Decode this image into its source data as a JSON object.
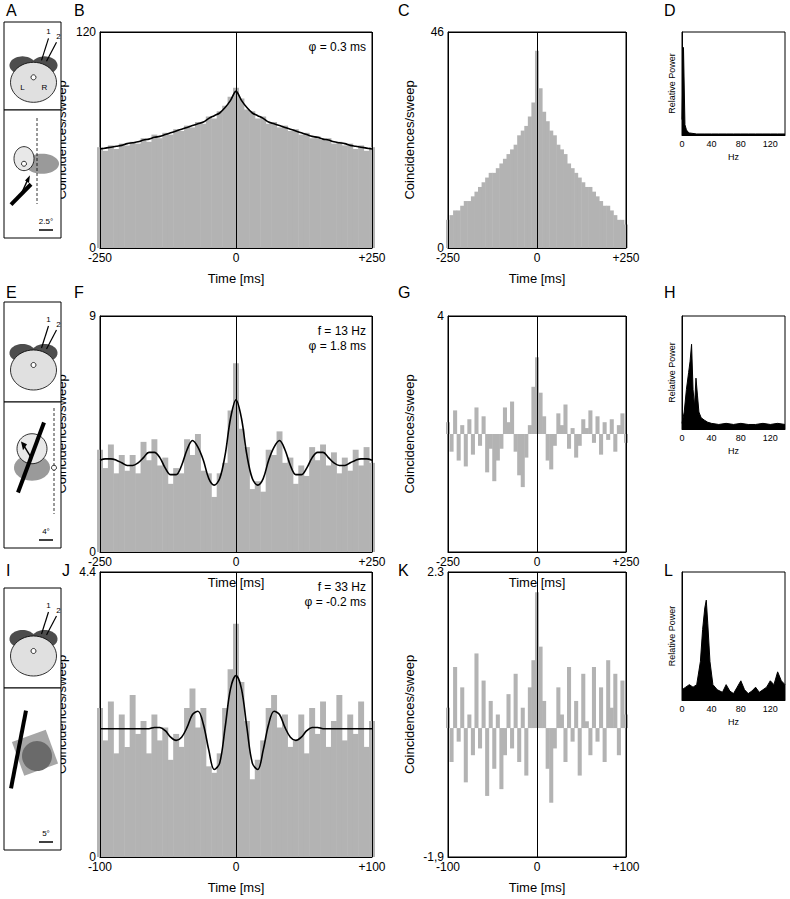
{
  "chart_data": [
    {
      "title": "B",
      "type": "bar",
      "annotations": [
        "φ = 0.3 ms"
      ],
      "x_label": "Time [ms]",
      "y_label": "Coincidences/sweep",
      "xlim": [
        -250,
        250
      ],
      "xticks": [
        -250,
        0,
        {
          "value": 250,
          "label": "+250"
        }
      ],
      "ylim": [
        0,
        120
      ],
      "yticks": [
        0,
        120
      ],
      "grid": true,
      "x": [
        -250,
        -240,
        -230,
        -220,
        -210,
        -200,
        -190,
        -180,
        -170,
        -160,
        -150,
        -140,
        -130,
        -120,
        -110,
        -100,
        -90,
        -80,
        -70,
        -60,
        -50,
        -40,
        -30,
        -20,
        -10,
        0,
        10,
        20,
        30,
        40,
        50,
        60,
        70,
        80,
        90,
        100,
        110,
        120,
        130,
        140,
        150,
        160,
        170,
        180,
        190,
        200,
        210,
        220,
        230,
        240,
        250
      ],
      "series": [
        {
          "type": "bar",
          "color": "#b3b3b3",
          "values": [
            56,
            54,
            57,
            55,
            58,
            57,
            59,
            58,
            61,
            59,
            63,
            61,
            64,
            63,
            66,
            65,
            68,
            67,
            70,
            69,
            73,
            72,
            76,
            79,
            84,
            89,
            83,
            77,
            76,
            72,
            73,
            69,
            70,
            67,
            68,
            65,
            66,
            63,
            64,
            61,
            62,
            60,
            61,
            58,
            59,
            57,
            58,
            55,
            57,
            54,
            56
          ]
        },
        {
          "type": "line",
          "color": "#000000",
          "values": [
            55,
            55.5,
            56,
            56.5,
            57,
            58,
            58.5,
            59,
            60,
            60.5,
            61.5,
            62,
            63,
            64,
            65,
            66,
            67,
            68,
            69,
            70,
            72,
            73.5,
            75,
            78,
            82,
            87,
            82,
            78,
            75,
            73.5,
            72,
            70,
            69,
            68,
            67,
            66,
            65,
            64,
            63,
            62,
            61.5,
            60.5,
            60,
            59,
            58.5,
            58,
            57,
            56.5,
            56,
            55.5,
            55
          ]
        }
      ]
    },
    {
      "title": "C",
      "type": "bar",
      "x_label": "Time [ms]",
      "y_label": "Coincidences/sweep",
      "xlim": [
        -250,
        250
      ],
      "xticks": [
        -250,
        0,
        {
          "value": 250,
          "label": "+250"
        }
      ],
      "ylim": [
        0,
        46
      ],
      "yticks": [
        0,
        46
      ],
      "grid": true,
      "x": [
        -250,
        -240,
        -230,
        -220,
        -210,
        -200,
        -190,
        -180,
        -170,
        -160,
        -150,
        -140,
        -130,
        -120,
        -110,
        -100,
        -90,
        -80,
        -70,
        -60,
        -50,
        -40,
        -30,
        -20,
        -10,
        0,
        10,
        20,
        30,
        40,
        50,
        60,
        70,
        80,
        90,
        100,
        110,
        120,
        130,
        140,
        150,
        160,
        170,
        180,
        190,
        200,
        210,
        220,
        230,
        240,
        250
      ],
      "series": [
        {
          "type": "bar",
          "color": "#b3b3b3",
          "values": [
            6,
            7,
            8,
            8,
            9,
            10,
            10,
            11,
            12,
            13,
            14,
            15,
            16,
            16,
            17,
            18,
            19,
            20,
            21,
            22,
            24,
            25,
            26,
            28,
            31,
            42,
            34,
            29,
            27,
            25,
            24,
            22,
            21,
            20,
            18,
            17,
            16,
            15,
            14,
            13,
            13,
            12,
            11,
            10,
            9,
            9,
            8,
            7,
            6,
            6,
            5
          ]
        }
      ]
    },
    {
      "title": "D",
      "type": "line",
      "x_label": "Hz",
      "y_label": "Relative Power",
      "xlim": [
        0,
        140
      ],
      "xticks": [
        0,
        40,
        80,
        120
      ],
      "ylim": [
        0,
        1
      ],
      "yticks": [],
      "grid": false,
      "tick_labels": "x",
      "x": [
        0,
        2,
        4,
        6,
        8,
        10,
        20,
        30,
        40,
        50,
        60,
        70,
        80,
        90,
        100,
        110,
        120,
        130,
        140
      ],
      "series": [
        {
          "type": "area",
          "color": "#000000",
          "values": [
            0.15,
            0.85,
            0.1,
            0.05,
            0.03,
            0.02,
            0.01,
            0.01,
            0.01,
            0.01,
            0.01,
            0.01,
            0.01,
            0.01,
            0.01,
            0.01,
            0.01,
            0.01,
            0.01
          ]
        }
      ]
    },
    {
      "title": "F",
      "type": "bar",
      "annotations": [
        "f = 13 Hz",
        "φ = 1.8 ms"
      ],
      "x_label": "Time [ms]",
      "y_label": "Coincidences/sweep",
      "xlim": [
        -250,
        250
      ],
      "xticks": [
        -250,
        0,
        {
          "value": 250,
          "label": "+250"
        }
      ],
      "ylim": [
        0,
        9
      ],
      "yticks": [
        0,
        9
      ],
      "grid": true,
      "x": [
        -250,
        -240,
        -230,
        -220,
        -210,
        -200,
        -190,
        -180,
        -170,
        -160,
        -150,
        -140,
        -130,
        -120,
        -110,
        -100,
        -90,
        -80,
        -70,
        -60,
        -50,
        -40,
        -30,
        -20,
        -10,
        0,
        10,
        20,
        30,
        40,
        50,
        60,
        70,
        80,
        90,
        100,
        110,
        120,
        130,
        140,
        150,
        160,
        170,
        180,
        190,
        200,
        210,
        220,
        230,
        240,
        250
      ],
      "series": [
        {
          "type": "bar",
          "color": "#b3b3b3",
          "values": [
            3.9,
            3.2,
            4.1,
            3.0,
            3.7,
            3.1,
            3.7,
            3.0,
            4.2,
            3.5,
            4.3,
            3.3,
            3.6,
            2.6,
            3.2,
            3.0,
            4.3,
            3.7,
            4.5,
            3.1,
            3.0,
            2.1,
            3.0,
            3.4,
            5.4,
            7.2,
            4.7,
            4.0,
            2.4,
            2.7,
            2.3,
            3.9,
            3.7,
            4.6,
            3.4,
            3.6,
            2.6,
            3.3,
            2.9,
            4.0,
            3.5,
            4.1,
            3.3,
            3.8,
            3.0,
            3.6,
            3.1,
            3.9,
            3.3,
            4.0,
            3.4
          ]
        },
        {
          "type": "line",
          "color": "#000000",
          "values": [
            3.5,
            3.55,
            3.55,
            3.5,
            3.4,
            3.3,
            3.3,
            3.4,
            3.6,
            3.8,
            3.8,
            3.6,
            3.2,
            2.95,
            2.95,
            3.3,
            3.9,
            4.25,
            4.0,
            3.5,
            2.8,
            2.55,
            2.8,
            3.7,
            5.1,
            5.8,
            5.1,
            3.7,
            2.8,
            2.55,
            2.8,
            3.5,
            4.0,
            4.25,
            3.9,
            3.3,
            2.95,
            2.95,
            3.2,
            3.6,
            3.8,
            3.8,
            3.6,
            3.4,
            3.3,
            3.3,
            3.4,
            3.5,
            3.55,
            3.55,
            3.5
          ]
        }
      ]
    },
    {
      "title": "G",
      "type": "bar",
      "x_label": "Time [ms]",
      "y_label": "Coincidences/sweep",
      "xlim": [
        -250,
        250
      ],
      "xticks": [
        -250,
        0,
        {
          "value": 250,
          "label": "+250"
        }
      ],
      "ylim": [
        -4,
        4
      ],
      "yticks": [
        4
      ],
      "grid": true,
      "x": [
        -250,
        -240,
        -230,
        -220,
        -210,
        -200,
        -190,
        -180,
        -170,
        -160,
        -150,
        -140,
        -130,
        -120,
        -110,
        -100,
        -90,
        -80,
        -70,
        -60,
        -50,
        -40,
        -30,
        -20,
        -10,
        0,
        10,
        20,
        30,
        40,
        50,
        60,
        70,
        80,
        90,
        100,
        110,
        120,
        130,
        140,
        150,
        160,
        170,
        180,
        190,
        200,
        210,
        220,
        230,
        240,
        250
      ],
      "series": [
        {
          "type": "bar",
          "color": "#b3b3b3",
          "values": [
            0.4,
            -0.6,
            0.8,
            -0.9,
            0.3,
            -1.1,
            0.5,
            -0.7,
            0.9,
            -0.4,
            0.6,
            -1.3,
            -0.5,
            -1.6,
            -0.9,
            -0.5,
            0.9,
            0.4,
            1.1,
            -0.6,
            -1.4,
            -1.8,
            -0.8,
            0.3,
            1.6,
            2.6,
            1.4,
            0.6,
            -0.9,
            -1.2,
            -0.4,
            0.7,
            0.3,
            1.0,
            -0.5,
            0.2,
            -0.8,
            -0.4,
            0.5,
            0.2,
            0.8,
            -0.3,
            0.6,
            -0.7,
            0.4,
            -0.2,
            0.5,
            -0.6,
            0.3,
            0.7,
            -0.3
          ]
        }
      ]
    },
    {
      "title": "H",
      "type": "line",
      "x_label": "Hz",
      "y_label": "Relative Power",
      "xlim": [
        0,
        140
      ],
      "xticks": [
        0,
        40,
        80,
        120
      ],
      "ylim": [
        0,
        1
      ],
      "yticks": [],
      "grid": false,
      "tick_labels": "x",
      "x": [
        0,
        3,
        6,
        9,
        11,
        13,
        15,
        17,
        19,
        21,
        23,
        26,
        30,
        35,
        40,
        50,
        60,
        70,
        80,
        90,
        100,
        110,
        120,
        130,
        140
      ],
      "series": [
        {
          "type": "area",
          "color": "#000000",
          "values": [
            0.05,
            0.15,
            0.35,
            0.5,
            0.6,
            0.75,
            0.35,
            0.2,
            0.45,
            0.3,
            0.15,
            0.1,
            0.08,
            0.06,
            0.05,
            0.04,
            0.05,
            0.04,
            0.05,
            0.04,
            0.04,
            0.05,
            0.04,
            0.05,
            0.04
          ]
        }
      ]
    },
    {
      "title": "J",
      "type": "bar",
      "annotations": [
        "f = 33 Hz",
        "φ = -0.2 ms"
      ],
      "x_label": "Time [ms]",
      "y_label": "Coincidences/sweep",
      "xlim": [
        -100,
        100
      ],
      "xticks": [
        -100,
        0,
        {
          "value": 100,
          "label": "+100"
        }
      ],
      "ylim": [
        0,
        4.4
      ],
      "yticks": [
        0,
        4.4
      ],
      "grid": true,
      "x": [
        -100,
        -96,
        -92,
        -88,
        -84,
        -80,
        -76,
        -72,
        -68,
        -64,
        -60,
        -56,
        -52,
        -48,
        -44,
        -40,
        -36,
        -32,
        -28,
        -24,
        -20,
        -16,
        -12,
        -8,
        -4,
        0,
        4,
        8,
        12,
        16,
        20,
        24,
        28,
        32,
        36,
        40,
        44,
        48,
        52,
        56,
        60,
        64,
        68,
        72,
        76,
        80,
        84,
        88,
        92,
        96,
        100
      ],
      "series": [
        {
          "type": "bar",
          "color": "#b3b3b3",
          "values": [
            2.3,
            1.8,
            2.4,
            1.6,
            2.2,
            1.7,
            2.5,
            1.9,
            2.1,
            1.6,
            2.2,
            1.8,
            2.0,
            1.5,
            1.9,
            1.7,
            2.3,
            2.6,
            2.0,
            2.3,
            1.4,
            1.3,
            1.6,
            2.3,
            2.9,
            3.6,
            2.7,
            2.1,
            1.2,
            1.5,
            1.8,
            2.3,
            2.5,
            2.0,
            2.2,
            1.7,
            1.8,
            2.2,
            1.6,
            2.3,
            1.9,
            2.4,
            1.7,
            2.1,
            2.5,
            1.8,
            2.2,
            1.9,
            2.4,
            1.7,
            2.1
          ]
        },
        {
          "type": "line",
          "color": "#000000",
          "values": [
            1.98,
            1.98,
            1.98,
            1.98,
            1.98,
            1.98,
            1.98,
            1.98,
            1.98,
            1.98,
            2.0,
            2.0,
            1.95,
            1.85,
            1.8,
            1.85,
            2.0,
            2.2,
            2.25,
            2.05,
            1.65,
            1.35,
            1.45,
            2.0,
            2.6,
            2.8,
            2.6,
            2.0,
            1.45,
            1.35,
            1.65,
            2.05,
            2.25,
            2.2,
            2.0,
            1.85,
            1.8,
            1.85,
            1.95,
            2.0,
            2.0,
            1.98,
            1.98,
            1.98,
            1.98,
            1.98,
            1.98,
            1.98,
            1.98,
            1.98,
            1.98
          ]
        }
      ]
    },
    {
      "title": "K",
      "type": "bar",
      "x_label": "Time [ms]",
      "y_label": "Coincidences/sweep",
      "xlim": [
        -100,
        100
      ],
      "xticks": [
        -100,
        0,
        {
          "value": 100,
          "label": "+100"
        }
      ],
      "ylim": [
        -1.9,
        2.3
      ],
      "yticks": [
        {
          "value": -1.9,
          "label": "-1,9"
        },
        2.3
      ],
      "grid": true,
      "x": [
        -100,
        -96,
        -92,
        -88,
        -84,
        -80,
        -76,
        -72,
        -68,
        -64,
        -60,
        -56,
        -52,
        -48,
        -44,
        -40,
        -36,
        -32,
        -28,
        -24,
        -20,
        -16,
        -12,
        -8,
        -4,
        0,
        4,
        8,
        12,
        16,
        20,
        24,
        28,
        32,
        36,
        40,
        44,
        48,
        52,
        56,
        60,
        64,
        68,
        72,
        76,
        80,
        84,
        88,
        92,
        96,
        100
      ],
      "series": [
        {
          "type": "bar",
          "color": "#b3b3b3",
          "values": [
            0.3,
            -0.5,
            0.9,
            -0.2,
            0.6,
            -0.8,
            0.2,
            -0.4,
            1.1,
            -0.3,
            0.7,
            -1.0,
            0.4,
            -0.6,
            0.2,
            -0.9,
            -0.4,
            0.5,
            -0.3,
            0.8,
            -0.5,
            0.3,
            -0.7,
            0.6,
            1.0,
            2.0,
            1.2,
            0.4,
            -0.6,
            -1.1,
            -0.3,
            0.6,
            0.2,
            -0.5,
            0.9,
            -0.2,
            0.4,
            -0.7,
            0.8,
            0.1,
            -0.4,
            0.9,
            -0.2,
            0.6,
            -0.5,
            1.0,
            0.3,
            0.8,
            -0.4,
            0.7,
            0.2
          ]
        }
      ]
    },
    {
      "title": "L",
      "type": "line",
      "x_label": "Hz",
      "y_label": "Relative Power",
      "xlim": [
        0,
        140
      ],
      "xticks": [
        0,
        40,
        80,
        120
      ],
      "ylim": [
        0,
        1
      ],
      "yticks": [],
      "grid": false,
      "tick_labels": "x",
      "x": [
        0,
        5,
        10,
        15,
        20,
        25,
        28,
        31,
        33,
        35,
        38,
        42,
        48,
        55,
        60,
        65,
        70,
        75,
        80,
        85,
        90,
        95,
        100,
        105,
        110,
        115,
        120,
        125,
        130,
        135,
        140
      ],
      "series": [
        {
          "type": "area",
          "color": "#000000",
          "values": [
            0.08,
            0.1,
            0.12,
            0.1,
            0.12,
            0.3,
            0.55,
            0.72,
            0.78,
            0.6,
            0.3,
            0.12,
            0.08,
            0.06,
            0.12,
            0.07,
            0.05,
            0.1,
            0.15,
            0.08,
            0.05,
            0.07,
            0.1,
            0.06,
            0.08,
            0.1,
            0.15,
            0.12,
            0.22,
            0.15,
            0.12
          ]
        }
      ]
    }
  ],
  "diagrams": [
    {
      "title": "A",
      "electrodes": [
        "1",
        "2"
      ],
      "hemispheres": [
        "L",
        "R"
      ],
      "scale": "2.5°"
    },
    {
      "title": "E",
      "electrodes": [
        "1",
        "2"
      ],
      "scale": "4°"
    },
    {
      "title": "I",
      "electrodes": [
        "1",
        "2"
      ],
      "scale": "5°"
    }
  ]
}
